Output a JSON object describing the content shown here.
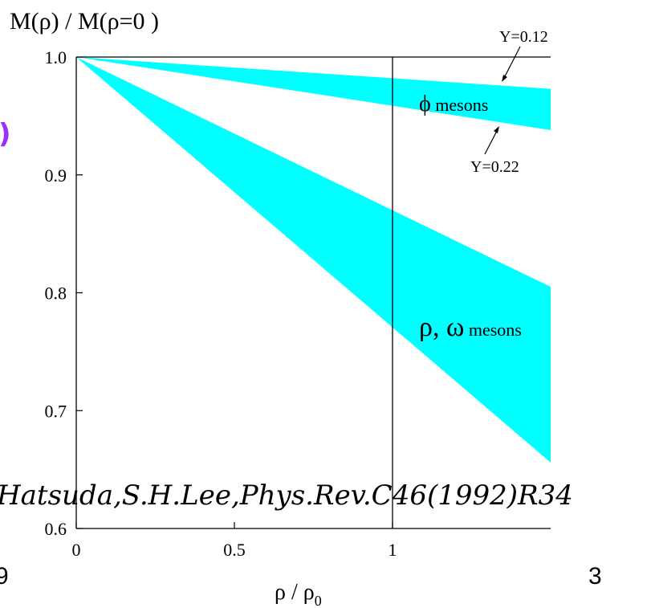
{
  "chart_data": {
    "type": "area",
    "ylabel": "M(ρ) / M(ρ=0 )",
    "xlabel": "ρ / ρ",
    "xlabel_sub": "0",
    "x_ticks": [
      "0",
      "0.5",
      "1"
    ],
    "y_ticks": [
      "1.0",
      "0.9",
      "0.8",
      "0.7",
      "0.6"
    ],
    "xlim": [
      0,
      1.5
    ],
    "ylim": [
      0.6,
      1.0
    ],
    "reference_line_x": 1,
    "colors": {
      "band": "#00FFFF",
      "axis": "#000000",
      "accent": "#9B30FF"
    },
    "series": [
      {
        "name": "ϕ mesons",
        "label_symbol": "ϕ",
        "label_text": "mesons",
        "upper": [
          {
            "x": 0,
            "y": 1.0
          },
          {
            "x": 1.5,
            "y": 0.973
          }
        ],
        "lower": [
          {
            "x": 0,
            "y": 1.0
          },
          {
            "x": 1.5,
            "y": 0.938
          }
        ],
        "upper_annotation": "Y=0.12",
        "lower_annotation": "Y=0.22"
      },
      {
        "name": "ρ, ω mesons",
        "label_symbol": "ρ, ω",
        "label_text": "mesons",
        "upper": [
          {
            "x": 0,
            "y": 1.0
          },
          {
            "x": 1.5,
            "y": 0.805
          }
        ],
        "lower": [
          {
            "x": 0,
            "y": 1.0
          },
          {
            "x": 1.5,
            "y": 0.656
          }
        ]
      }
    ]
  },
  "citation": "Hatsuda,S.H.Lee,Phys.Rev.C46(1992)R34",
  "left_edge_digit": "9",
  "page_number": "3",
  "left_edge_mark": ")"
}
